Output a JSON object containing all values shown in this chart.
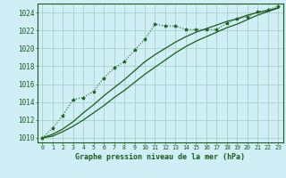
{
  "title": "Graphe pression niveau de la mer (hPa)",
  "background_color": "#d0eef5",
  "grid_color": "#a0ccbb",
  "line_color": "#1a5c1a",
  "hours": [
    0,
    1,
    2,
    3,
    4,
    5,
    6,
    7,
    8,
    9,
    10,
    11,
    12,
    13,
    14,
    15,
    16,
    17,
    18,
    19,
    20,
    21,
    22,
    23
  ],
  "main_line": [
    1010.0,
    1011.1,
    1012.5,
    1014.3,
    1014.5,
    1015.2,
    1016.7,
    1017.8,
    1018.5,
    1019.8,
    1021.0,
    1022.7,
    1022.5,
    1022.5,
    1022.1,
    1022.1,
    1022.1,
    1022.1,
    1022.8,
    1023.3,
    1023.5,
    1024.1,
    1024.3,
    1024.7
  ],
  "ref_line1": [
    1010.0,
    1010.4,
    1011.0,
    1011.8,
    1012.8,
    1013.7,
    1014.7,
    1015.6,
    1016.5,
    1017.5,
    1018.5,
    1019.3,
    1020.0,
    1020.7,
    1021.3,
    1021.8,
    1022.2,
    1022.6,
    1023.0,
    1023.3,
    1023.7,
    1024.0,
    1024.2,
    1024.5
  ],
  "ref_line2": [
    1010.0,
    1010.2,
    1010.7,
    1011.3,
    1012.0,
    1012.8,
    1013.6,
    1014.5,
    1015.3,
    1016.2,
    1017.1,
    1017.9,
    1018.7,
    1019.5,
    1020.2,
    1020.8,
    1021.3,
    1021.8,
    1022.3,
    1022.7,
    1023.2,
    1023.7,
    1024.1,
    1024.5
  ],
  "ylim": [
    1009.5,
    1025.0
  ],
  "yticks": [
    1010,
    1012,
    1014,
    1016,
    1018,
    1020,
    1022,
    1024
  ],
  "xlim": [
    -0.5,
    23.5
  ]
}
